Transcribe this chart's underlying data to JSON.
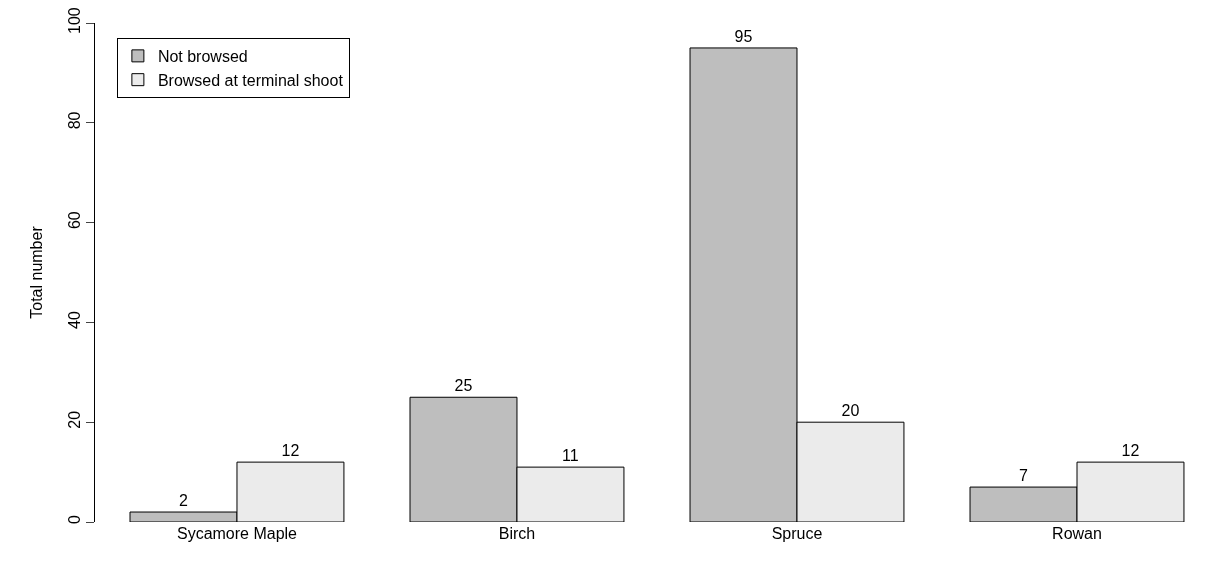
{
  "chart_data": {
    "type": "bar",
    "ylabel": "Total number",
    "categories": [
      "Sycamore Maple",
      "Birch",
      "Spruce",
      "Rowan"
    ],
    "series": [
      {
        "name": "Not browsed",
        "color": "#bebebe",
        "values": [
          2,
          25,
          95,
          7
        ]
      },
      {
        "name": "Browsed at terminal shoot",
        "color": "#ebebeb",
        "values": [
          12,
          11,
          20,
          12
        ]
      }
    ],
    "ylim": [
      0,
      100
    ],
    "yticks": [
      0,
      20,
      40,
      60,
      80,
      100
    ],
    "grid": false,
    "legend": "top left",
    "data_labels": true
  }
}
